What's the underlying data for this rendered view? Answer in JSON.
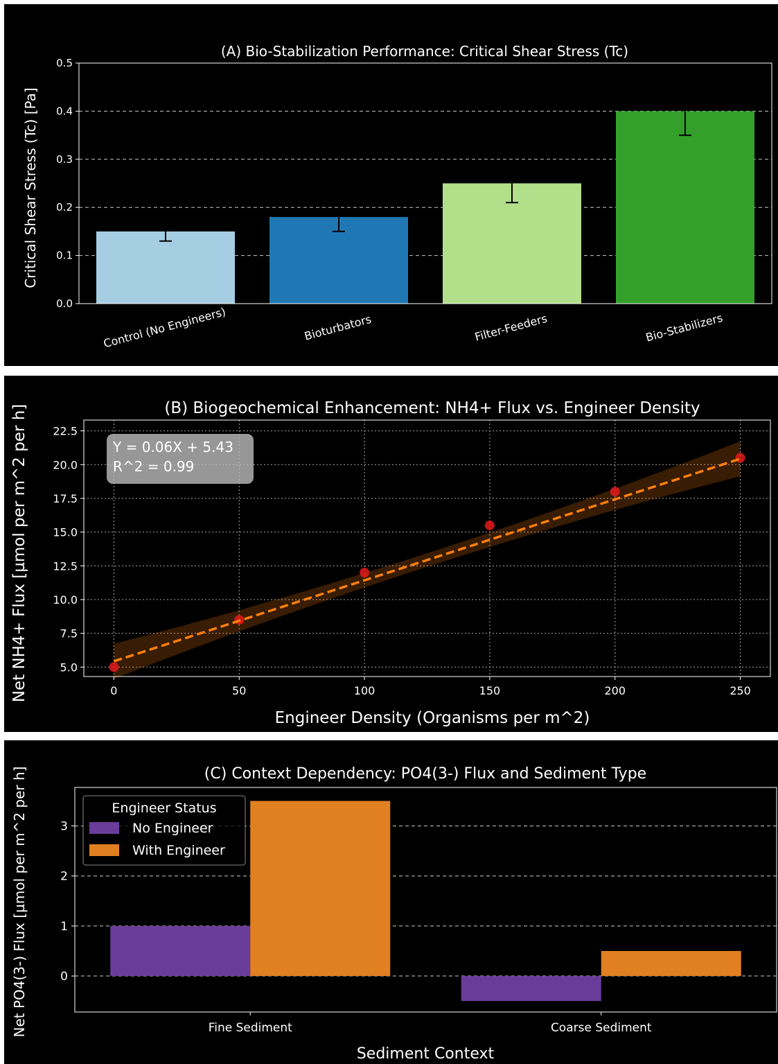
{
  "chart_data": [
    {
      "type": "bar",
      "title": "(A) Bio-Stabilization Performance: Critical Shear Stress (Tc)",
      "xlabel": "",
      "ylabel": "Critical Shear Stress (Tc) [Pa]",
      "categories": [
        "Control (No Engineers)",
        "Bioturbators",
        "Filter-Feeders",
        "Bio-Stabilizers"
      ],
      "values": [
        0.15,
        0.18,
        0.25,
        0.4
      ],
      "errors": [
        0.02,
        0.03,
        0.04,
        0.05
      ],
      "colors": [
        "#a6cee3",
        "#1f78b4",
        "#b2df8a",
        "#33a02c"
      ],
      "ylim": [
        0,
        0.5
      ],
      "yticks": [
        0.0,
        0.1,
        0.2,
        0.3,
        0.4,
        0.5
      ],
      "ytick_labels": [
        "0.0",
        "0.1",
        "0.2",
        "0.3",
        "0.4",
        "0.5"
      ],
      "grid": "y-dashed"
    },
    {
      "type": "scatter",
      "title": "(B) Biogeochemical Enhancement: NH4+ Flux vs. Engineer Density",
      "xlabel": "Engineer Density (Organisms per m^2)",
      "ylabel": "Net NH4+ Flux [µmol per m^2 per h]",
      "x": [
        0,
        50,
        100,
        150,
        200,
        250
      ],
      "y": [
        5.0,
        8.5,
        12.0,
        15.5,
        18.0,
        20.5
      ],
      "fit": {
        "slope": 0.06,
        "intercept": 5.43,
        "ci_start": 1.3,
        "ci_mid": 0.5,
        "ci_end": 1.3
      },
      "annotation_lines": [
        "Y = 0.06X + 5.43",
        "R^2 = 0.99"
      ],
      "xlim": [
        -12,
        262
      ],
      "ylim": [
        4.3,
        23.3
      ],
      "xticks": [
        0,
        50,
        100,
        150,
        200,
        250
      ],
      "xtick_labels": [
        "0",
        "50",
        "100",
        "150",
        "200",
        "250"
      ],
      "yticks": [
        5.0,
        7.5,
        10.0,
        12.5,
        15.0,
        17.5,
        20.0,
        22.5
      ],
      "ytick_labels": [
        "5.0",
        "7.5",
        "10.0",
        "12.5",
        "15.0",
        "17.5",
        "20.0",
        "22.5"
      ],
      "point_color": "#e31a1c",
      "line_color": "#ff7f0e",
      "grid": "dotted"
    },
    {
      "type": "bar",
      "title": "(C) Context Dependency: PO4(3-) Flux and Sediment Type",
      "xlabel": "Sediment Context",
      "ylabel": "Net PO4(3-) Flux [µmol per m^2 per h]",
      "categories": [
        "Fine Sediment",
        "Coarse Sediment"
      ],
      "series": [
        {
          "name": "No Engineer",
          "values": [
            1.0,
            -0.5
          ],
          "color": "#6a3d9a"
        },
        {
          "name": "With Engineer",
          "values": [
            3.5,
            0.5
          ],
          "color": "#e08020"
        }
      ],
      "legend_title": "Engineer Status",
      "legend_position": "top-left",
      "ylim": [
        -0.72,
        3.77
      ],
      "yticks": [
        0,
        1,
        2,
        3
      ],
      "ytick_labels": [
        "0",
        "1",
        "2",
        "3"
      ],
      "grid": "y-dashed"
    }
  ]
}
